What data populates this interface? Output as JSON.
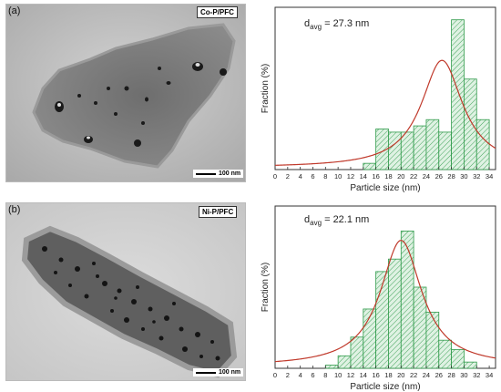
{
  "panels": [
    {
      "label": "(a)",
      "sample": "Co-P/PFC",
      "scale": "100 nm"
    },
    {
      "label": "(b)",
      "sample": "Ni-P/PFC",
      "scale": "100 nm"
    }
  ],
  "colors": {
    "bar_fill": "#dff2e3",
    "bar_hatch": "#2f9a4a",
    "bar_edge": "#2f9a4a",
    "fit_curve": "#c0392b"
  },
  "chart_data": [
    {
      "type": "bar",
      "annotation": {
        "prefix": "d",
        "subscript": "avg",
        "suffix": " = 27.3 nm"
      },
      "xlabel": "Particle size (nm)",
      "ylabel": "Fraction (%)",
      "xlim": [
        0,
        35
      ],
      "xticks": [
        0,
        2,
        4,
        6,
        8,
        10,
        12,
        14,
        16,
        18,
        20,
        22,
        24,
        26,
        28,
        30,
        32,
        34
      ],
      "ylim": [
        0,
        26
      ],
      "bin_width": 2,
      "bins": [
        {
          "x": 14,
          "value": 1.0
        },
        {
          "x": 16,
          "value": 6.5
        },
        {
          "x": 18,
          "value": 6.0
        },
        {
          "x": 20,
          "value": 6.0
        },
        {
          "x": 22,
          "value": 7.0
        },
        {
          "x": 24,
          "value": 8.0
        },
        {
          "x": 26,
          "value": 6.0
        },
        {
          "x": 28,
          "value": 24.0
        },
        {
          "x": 30,
          "value": 14.5
        },
        {
          "x": 32,
          "value": 8.0
        }
      ],
      "fit": {
        "type": "lorentzian",
        "center": 26.5,
        "hwhm": 4.0,
        "peak": 17.5,
        "baseline": 0.3
      }
    },
    {
      "type": "bar",
      "annotation": {
        "prefix": "d",
        "subscript": "avg",
        "suffix": " = 22.1 nm"
      },
      "xlabel": "Particle size (nm)",
      "ylabel": "Fraction (%)",
      "xlim": [
        0,
        35
      ],
      "xticks": [
        0,
        2,
        4,
        6,
        8,
        10,
        12,
        14,
        16,
        18,
        20,
        22,
        24,
        26,
        28,
        30,
        32,
        34
      ],
      "ylim": [
        0,
        26
      ],
      "bin_width": 2,
      "bins": [
        {
          "x": 8,
          "value": 0.5
        },
        {
          "x": 10,
          "value": 2.0
        },
        {
          "x": 12,
          "value": 5.0
        },
        {
          "x": 14,
          "value": 9.5
        },
        {
          "x": 16,
          "value": 15.5
        },
        {
          "x": 18,
          "value": 17.5
        },
        {
          "x": 20,
          "value": 22.0
        },
        {
          "x": 22,
          "value": 13.0
        },
        {
          "x": 24,
          "value": 9.0
        },
        {
          "x": 26,
          "value": 4.5
        },
        {
          "x": 28,
          "value": 3.0
        },
        {
          "x": 30,
          "value": 1.0
        }
      ],
      "fit": {
        "type": "lorentzian",
        "center": 20.0,
        "hwhm": 4.0,
        "peak": 20.5,
        "baseline": 0.3
      }
    }
  ]
}
